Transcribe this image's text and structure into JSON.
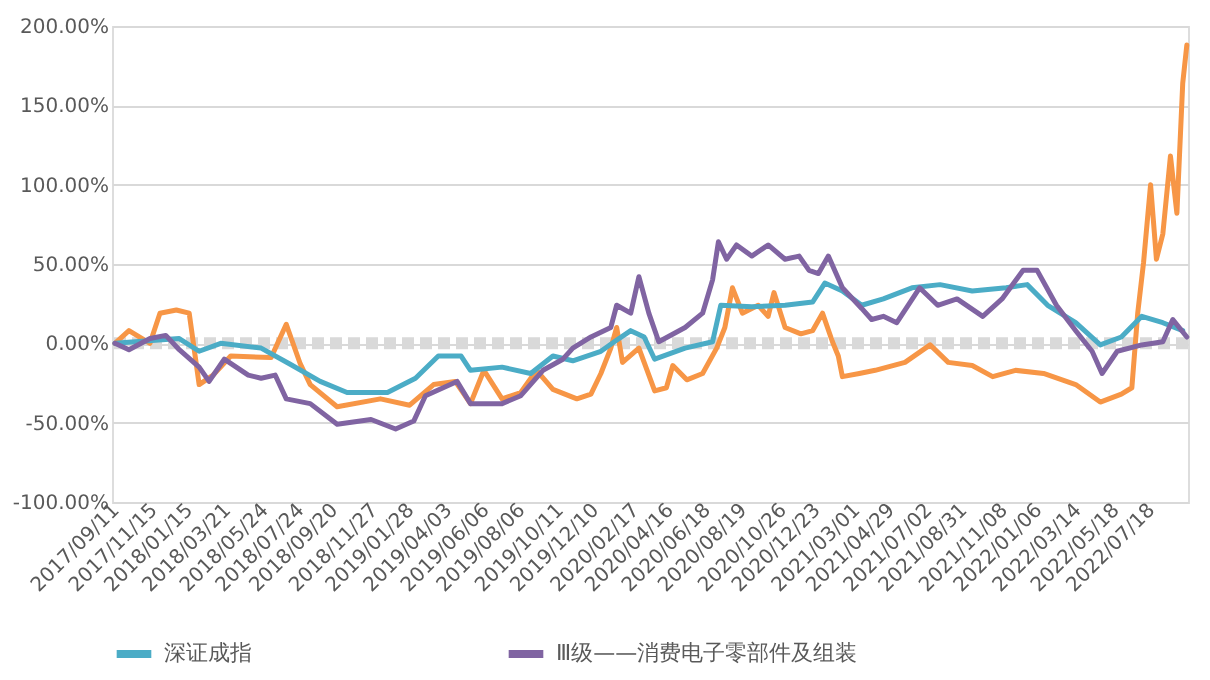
{
  "chart_data": {
    "type": "line",
    "xlim": [
      "2017-09-06",
      "2022-09-20"
    ],
    "xticks": [
      {
        "value": "2017-09-11",
        "label": "2017/09/11"
      },
      {
        "value": "2017-11-15",
        "label": "2017/11/15"
      },
      {
        "value": "2018-01-15",
        "label": "2018/01/15"
      },
      {
        "value": "2018-03-21",
        "label": "2018/03/21"
      },
      {
        "value": "2018-05-24",
        "label": "2018/05/24"
      },
      {
        "value": "2018-07-24",
        "label": "2018/07/24"
      },
      {
        "value": "2018-09-20",
        "label": "2018/09/20"
      },
      {
        "value": "2018-11-27",
        "label": "2018/11/27"
      },
      {
        "value": "2019-01-28",
        "label": "2019/01/28"
      },
      {
        "value": "2019-04-03",
        "label": "2019/04/03"
      },
      {
        "value": "2019-06-06",
        "label": "2019/06/06"
      },
      {
        "value": "2019-08-06",
        "label": "2019/08/06"
      },
      {
        "value": "2019-10-11",
        "label": "2019/10/11"
      },
      {
        "value": "2019-12-10",
        "label": "2019/12/10"
      },
      {
        "value": "2020-02-17",
        "label": "2020/02/17"
      },
      {
        "value": "2020-04-16",
        "label": "2020/04/16"
      },
      {
        "value": "2020-06-18",
        "label": "2020/06/18"
      },
      {
        "value": "2020-08-19",
        "label": "2020/08/19"
      },
      {
        "value": "2020-10-26",
        "label": "2020/10/26"
      },
      {
        "value": "2020-12-23",
        "label": "2020/12/23"
      },
      {
        "value": "2021-03-01",
        "label": "2021/03/01"
      },
      {
        "value": "2021-04-29",
        "label": "2021/04/29"
      },
      {
        "value": "2021-07-02",
        "label": "2021/07/02"
      },
      {
        "value": "2021-08-31",
        "label": "2021/08/31"
      },
      {
        "value": "2021-11-08",
        "label": "2021/11/08"
      },
      {
        "value": "2022-01-06",
        "label": "2022/01/06"
      },
      {
        "value": "2022-03-14",
        "label": "2022/03/14"
      },
      {
        "value": "2022-05-18",
        "label": "2022/05/18"
      },
      {
        "value": "2022-07-18",
        "label": "2022/07/18"
      }
    ],
    "ylim": [
      -100,
      200
    ],
    "yticks": [
      {
        "value": -100,
        "label": "-100.00%"
      },
      {
        "value": -50,
        "label": "-50.00%"
      },
      {
        "value": 0,
        "label": "0.00%"
      },
      {
        "value": 50,
        "label": "50.00%"
      },
      {
        "value": 100,
        "label": "100.00%"
      },
      {
        "value": 150,
        "label": "150.00%"
      },
      {
        "value": 200,
        "label": "200.00%"
      }
    ],
    "grid": "y",
    "legend": "bottom",
    "marker": "none",
    "line_style": "solid",
    "ref_lines": [
      {
        "axis": "y",
        "value": 0,
        "color": "#d9d9d9",
        "line_style": "dashed"
      }
    ],
    "series": [
      {
        "color": "#f79646",
        "x": [
          "2017-09-11",
          "2017-10-05",
          "2017-11-10",
          "2017-11-27",
          "2017-12-25",
          "2018-01-16",
          "2018-02-02",
          "2018-02-26",
          "2018-03-28",
          "2018-06-05",
          "2018-07-01",
          "2018-07-25",
          "2018-08-11",
          "2018-09-26",
          "2018-12-09",
          "2019-01-28",
          "2019-03-10",
          "2019-04-16",
          "2019-05-12",
          "2019-06-04",
          "2019-07-05",
          "2019-08-06",
          "2019-09-02",
          "2019-09-30",
          "2019-11-10",
          "2019-12-04",
          "2019-12-21",
          "2020-01-07",
          "2020-01-17",
          "2020-01-27",
          "2020-02-24",
          "2020-03-22",
          "2020-04-11",
          "2020-04-22",
          "2020-05-16",
          "2020-06-12",
          "2020-07-06",
          "2020-07-20",
          "2020-08-02",
          "2020-08-19",
          "2020-09-15",
          "2020-10-02",
          "2020-10-12",
          "2020-10-31",
          "2020-11-27",
          "2020-12-17",
          "2021-01-03",
          "2021-01-20",
          "2021-01-30",
          "2021-02-06",
          "2021-03-07",
          "2021-04-03",
          "2021-05-24",
          "2021-07-06",
          "2021-08-06",
          "2021-09-16",
          "2021-10-21",
          "2021-11-29",
          "2022-01-16",
          "2022-03-12",
          "2022-04-23",
          "2022-05-29",
          "2022-06-16",
          "2022-06-26",
          "2022-07-06",
          "2022-07-18",
          "2022-07-28",
          "2022-08-08",
          "2022-08-21",
          "2022-09-01",
          "2022-09-11",
          "2022-09-18"
        ],
        "values": [
          0,
          8,
          0,
          19,
          21,
          19,
          -26,
          -20,
          -8,
          -9,
          12,
          -13,
          -26,
          -40,
          -35,
          -39,
          -26,
          -24,
          -38,
          -17,
          -35,
          -31,
          -17,
          -29,
          -35,
          -32,
          -19,
          -3,
          10,
          -12,
          -3,
          -30,
          -28,
          -14,
          -23,
          -19,
          -3,
          10,
          35,
          19,
          24,
          17,
          32,
          10,
          6,
          8,
          19,
          1,
          -8,
          -21,
          -19,
          -17,
          -12,
          -1,
          -12,
          -14,
          -21,
          -17,
          -19,
          -26,
          -37,
          -32,
          -28,
          19,
          51,
          100,
          53,
          69,
          118,
          82,
          164,
          188
        ]
      },
      {
        "name": "深证成指",
        "color": "#4bacc6",
        "x": [
          "2017-09-11",
          "2017-12-30",
          "2018-02-02",
          "2018-03-11",
          "2018-05-19",
          "2018-07-07",
          "2018-08-28",
          "2018-10-13",
          "2018-12-21",
          "2019-02-07",
          "2019-03-18",
          "2019-04-26",
          "2019-05-12",
          "2019-07-05",
          "2019-08-23",
          "2019-09-30",
          "2019-11-03",
          "2019-12-21",
          "2020-01-13",
          "2020-02-10",
          "2020-03-04",
          "2020-03-22",
          "2020-05-13",
          "2020-06-29",
          "2020-07-13",
          "2020-09-04",
          "2020-10-31",
          "2020-12-17",
          "2021-01-07",
          "2021-02-06",
          "2021-03-11",
          "2021-04-17",
          "2021-06-05",
          "2021-07-23",
          "2021-09-16",
          "2021-11-13",
          "2021-12-19",
          "2022-01-23",
          "2022-03-12",
          "2022-04-23",
          "2022-05-29",
          "2022-07-03",
          "2022-08-08",
          "2022-09-11"
        ],
        "values": [
          0,
          3,
          -5,
          0,
          -3,
          -13,
          -24,
          -31,
          -31,
          -22,
          -8,
          -8,
          -17,
          -15,
          -19,
          -8,
          -11,
          -5,
          1,
          8,
          4,
          -10,
          -3,
          1,
          24,
          23,
          24,
          26,
          38,
          33,
          24,
          28,
          35,
          37,
          33,
          35,
          37,
          24,
          13,
          -1,
          4,
          17,
          13,
          8
        ]
      },
      {
        "name": "Ⅲ级——消费电子零部件及组装",
        "color": "#8064a2",
        "x": [
          "2017-09-11",
          "2017-10-05",
          "2017-11-10",
          "2017-12-07",
          "2017-12-30",
          "2018-02-02",
          "2018-02-19",
          "2018-03-17",
          "2018-04-27",
          "2018-05-19",
          "2018-06-12",
          "2018-07-01",
          "2018-08-11",
          "2018-09-26",
          "2018-11-23",
          "2019-01-04",
          "2019-02-04",
          "2019-02-24",
          "2019-04-19",
          "2019-05-12",
          "2019-07-05",
          "2019-08-06",
          "2019-09-13",
          "2019-10-17",
          "2019-11-03",
          "2019-12-04",
          "2020-01-07",
          "2020-01-17",
          "2020-02-10",
          "2020-02-24",
          "2020-03-12",
          "2020-03-29",
          "2020-05-13",
          "2020-06-12",
          "2020-06-29",
          "2020-07-09",
          "2020-07-23",
          "2020-08-09",
          "2020-09-04",
          "2020-10-02",
          "2020-10-31",
          "2020-11-24",
          "2020-12-11",
          "2020-12-27",
          "2021-01-13",
          "2021-02-06",
          "2021-03-11",
          "2021-03-28",
          "2021-04-17",
          "2021-05-10",
          "2021-06-18",
          "2021-07-19",
          "2021-08-21",
          "2021-10-04",
          "2021-11-06",
          "2021-12-12",
          "2022-01-05",
          "2022-02-07",
          "2022-03-12",
          "2022-04-09",
          "2022-04-26",
          "2022-05-22",
          "2022-07-03",
          "2022-08-08",
          "2022-08-25",
          "2022-09-18"
        ],
        "values": [
          0,
          -4,
          3,
          5,
          -4,
          -15,
          -24,
          -10,
          -20,
          -22,
          -20,
          -35,
          -38,
          -51,
          -48,
          -54,
          -49,
          -33,
          -24,
          -38,
          -38,
          -33,
          -17,
          -10,
          -3,
          4,
          10,
          24,
          19,
          42,
          19,
          1,
          10,
          19,
          40,
          64,
          53,
          62,
          55,
          62,
          53,
          55,
          46,
          44,
          55,
          35,
          22,
          15,
          17,
          13,
          35,
          24,
          28,
          17,
          28,
          46,
          46,
          24,
          8,
          -5,
          -19,
          -5,
          -1,
          1,
          15,
          4
        ]
      }
    ]
  }
}
